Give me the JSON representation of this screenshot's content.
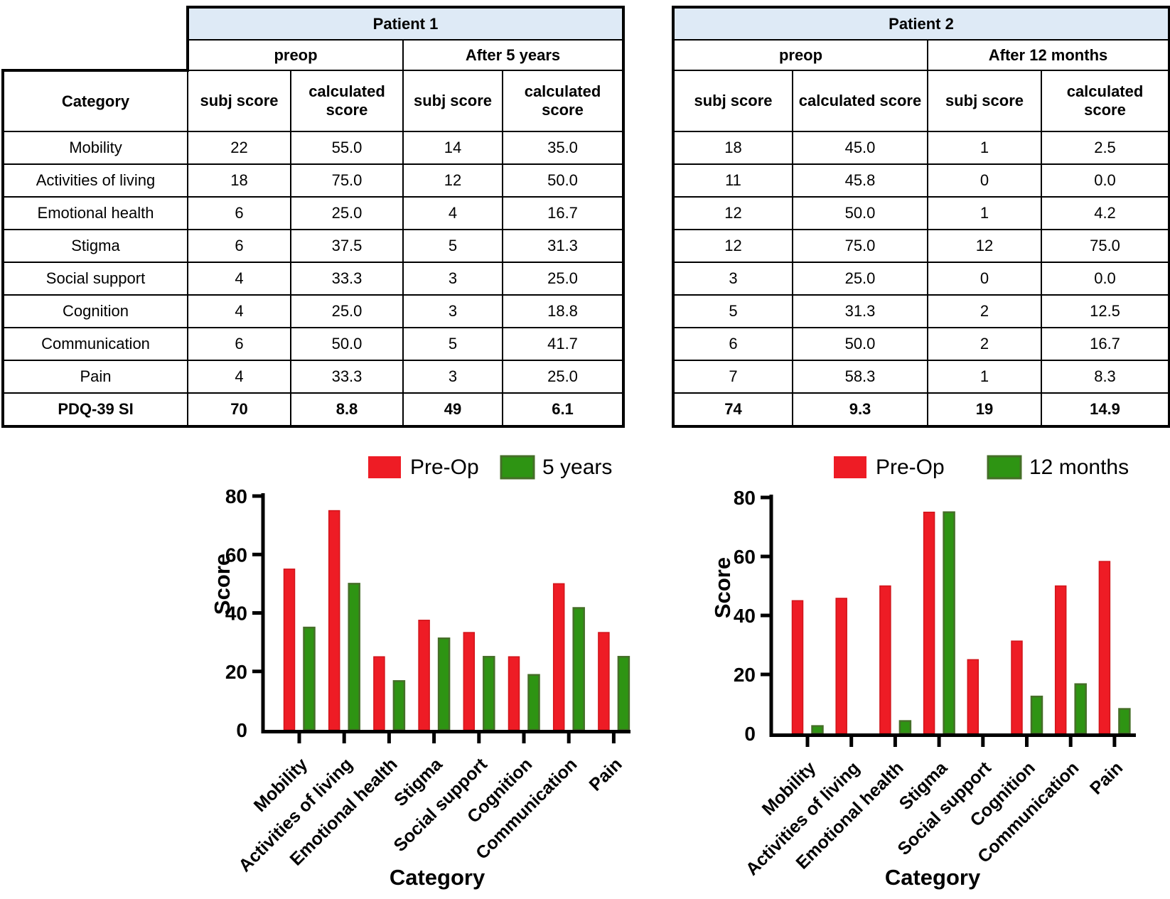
{
  "colors": {
    "header_fill": "#deeaf6",
    "preop_red": "#ee1c25",
    "preop_red_border": "#d1141a",
    "followup_green": "#2e9413",
    "followup_green_border": "#456f28",
    "axis_black": "#000000"
  },
  "tables": [
    {
      "title": "Patient 1",
      "category_header": "Category",
      "col_groups": [
        "preop",
        "After 5 years"
      ],
      "sub_headers": [
        "subj score",
        "calculated score",
        "subj score",
        "calculated score"
      ],
      "rows": [
        {
          "category": "Mobility",
          "values": [
            "22",
            "55.0",
            "14",
            "35.0"
          ]
        },
        {
          "category": "Activities of living",
          "values": [
            "18",
            "75.0",
            "12",
            "50.0"
          ]
        },
        {
          "category": "Emotional health",
          "values": [
            "6",
            "25.0",
            "4",
            "16.7"
          ]
        },
        {
          "category": "Stigma",
          "values": [
            "6",
            "37.5",
            "5",
            "31.3"
          ]
        },
        {
          "category": "Social support",
          "values": [
            "4",
            "33.3",
            "3",
            "25.0"
          ]
        },
        {
          "category": "Cognition",
          "values": [
            "4",
            "25.0",
            "3",
            "18.8"
          ]
        },
        {
          "category": "Communication",
          "values": [
            "6",
            "50.0",
            "5",
            "41.7"
          ]
        },
        {
          "category": "Pain",
          "values": [
            "4",
            "33.3",
            "3",
            "25.0"
          ]
        }
      ],
      "total_row": {
        "category": "PDQ-39 SI",
        "values": [
          "70",
          "8.8",
          "49",
          "6.1"
        ]
      }
    },
    {
      "title": "Patient 2",
      "col_groups": [
        "preop",
        "After 12 months"
      ],
      "sub_headers": [
        "subj score",
        "calculated score",
        "subj score",
        "calculated score"
      ],
      "rows": [
        {
          "values": [
            "18",
            "45.0",
            "1",
            "2.5"
          ]
        },
        {
          "values": [
            "11",
            "45.8",
            "0",
            "0.0"
          ]
        },
        {
          "values": [
            "12",
            "50.0",
            "1",
            "4.2"
          ]
        },
        {
          "values": [
            "12",
            "75.0",
            "12",
            "75.0"
          ]
        },
        {
          "values": [
            "3",
            "25.0",
            "0",
            "0.0"
          ]
        },
        {
          "values": [
            "5",
            "31.3",
            "2",
            "12.5"
          ]
        },
        {
          "values": [
            "6",
            "50.0",
            "2",
            "16.7"
          ]
        },
        {
          "values": [
            "7",
            "58.3",
            "1",
            "8.3"
          ]
        }
      ],
      "total_row": {
        "values": [
          "74",
          "9.3",
          "19",
          "14.9"
        ]
      }
    }
  ],
  "chart_data": [
    {
      "type": "bar",
      "title": "Patient 1 PDQ-39 calculated scores",
      "categories": [
        "Mobility",
        "Activities of living",
        "Emotional health",
        "Stigma",
        "Social support",
        "Cognition",
        "Communication",
        "Pain"
      ],
      "series": [
        {
          "name": "Pre-Op",
          "color": "#ee1c25",
          "border": "#d1141a",
          "values": [
            55.0,
            75.0,
            25.0,
            37.5,
            33.3,
            25.0,
            50.0,
            33.3
          ]
        },
        {
          "name": "5 years",
          "color": "#2e9413",
          "border": "#456f28",
          "values": [
            35.0,
            50.0,
            16.7,
            31.3,
            25.0,
            18.8,
            41.7,
            25.0
          ]
        }
      ],
      "xlabel": "Category",
      "ylabel": "Score",
      "ylim": [
        0,
        80
      ],
      "yticks": [
        0,
        20,
        40,
        60,
        80
      ],
      "grid": false,
      "legend_position": "top"
    },
    {
      "type": "bar",
      "title": "Patient 2 PDQ-39 calculated scores",
      "categories": [
        "Mobility",
        "Activities of living",
        "Emotional health",
        "Stigma",
        "Social support",
        "Cognition",
        "Communication",
        "Pain"
      ],
      "series": [
        {
          "name": "Pre-Op",
          "color": "#ee1c25",
          "border": "#d1141a",
          "values": [
            45.0,
            45.8,
            50.0,
            75.0,
            25.0,
            31.3,
            50.0,
            58.3
          ]
        },
        {
          "name": "12 months",
          "color": "#2e9413",
          "border": "#456f28",
          "values": [
            2.5,
            0.0,
            4.2,
            75.0,
            0.0,
            12.5,
            16.7,
            8.3
          ]
        }
      ],
      "xlabel": "Category",
      "ylabel": "Score",
      "ylim": [
        0,
        80
      ],
      "yticks": [
        0,
        20,
        40,
        60,
        80
      ],
      "grid": false,
      "legend_position": "top"
    }
  ]
}
